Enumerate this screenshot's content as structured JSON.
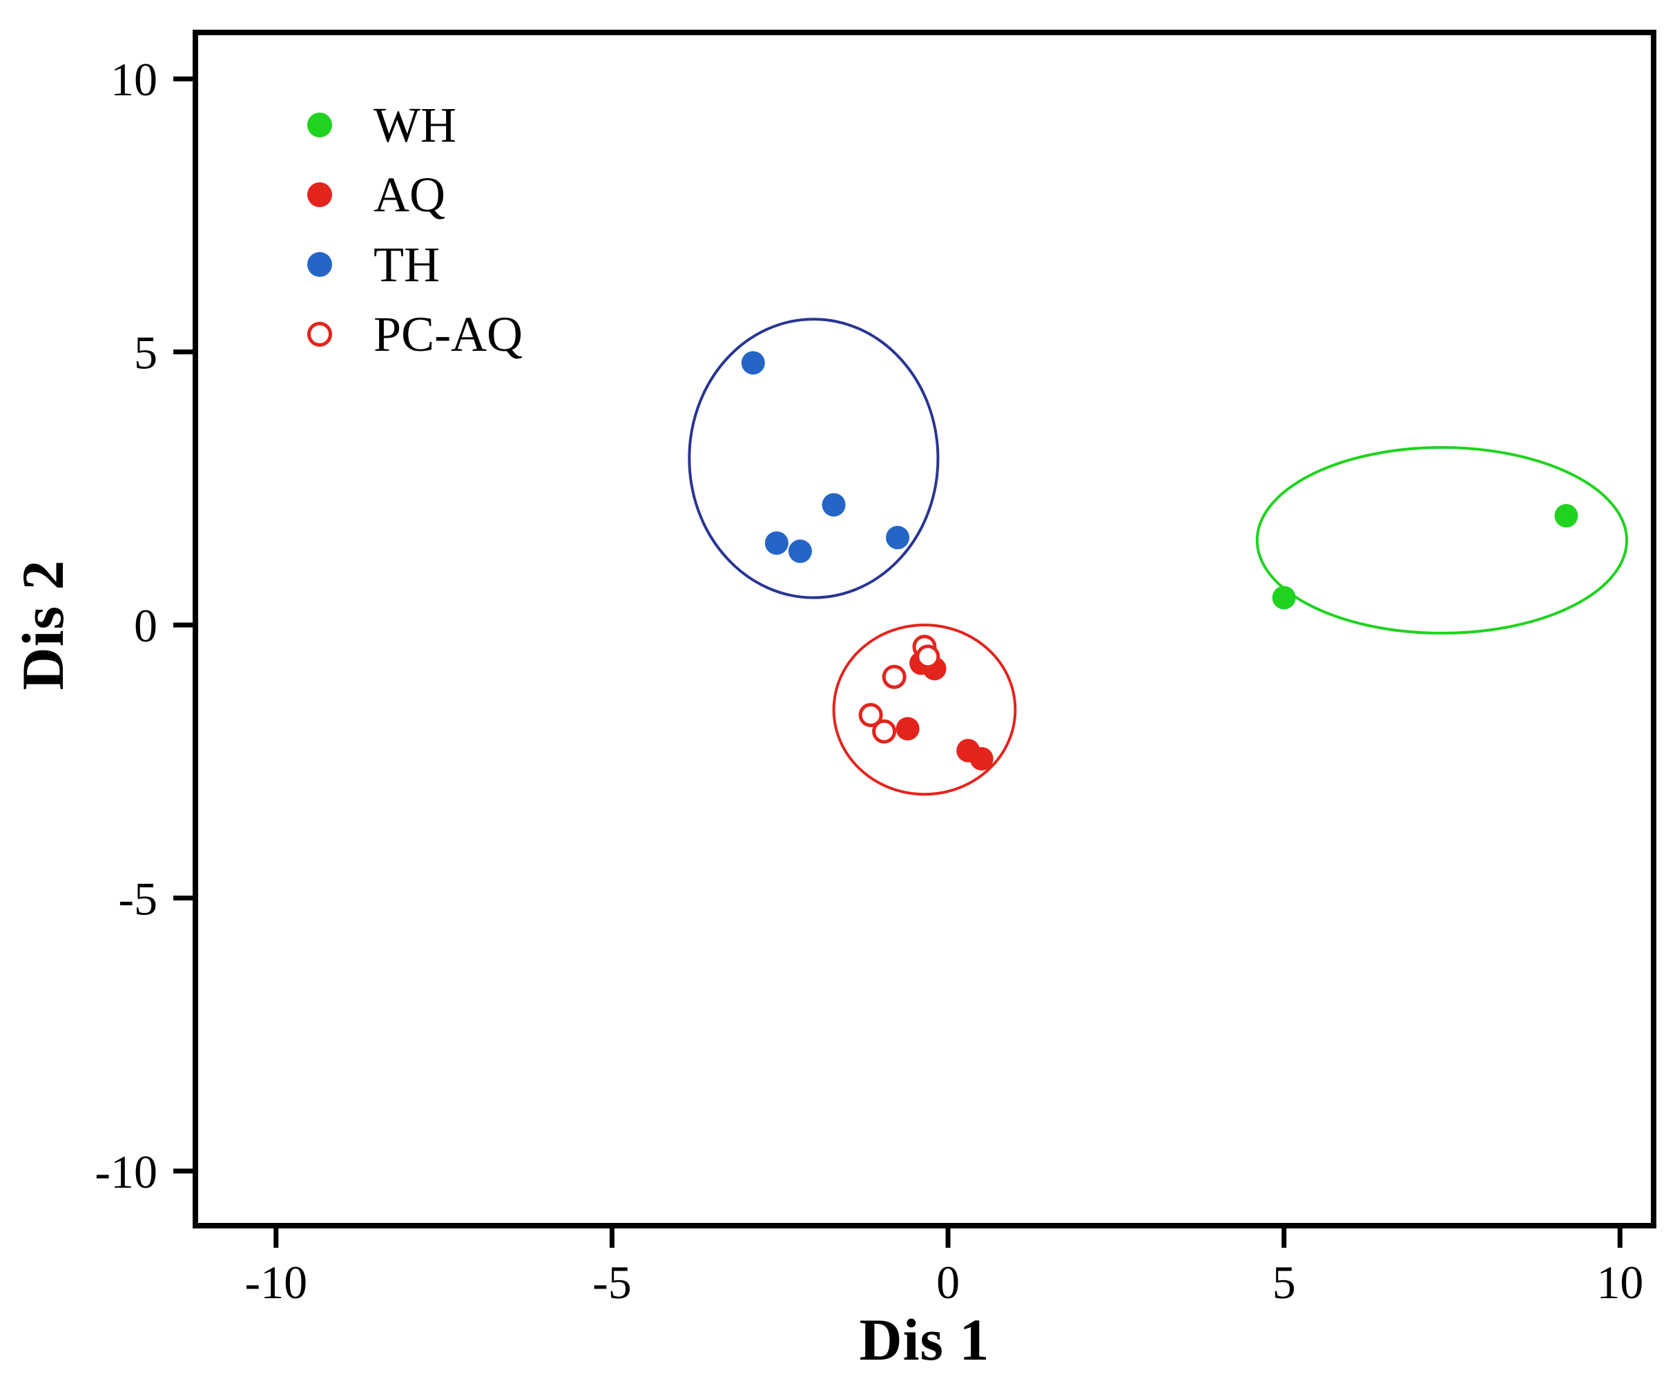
{
  "chart_data": {
    "type": "scatter",
    "title": "",
    "xlabel": "Dis 1",
    "ylabel": "Dis 2",
    "xlim": [
      -11.2,
      10.5
    ],
    "ylim": [
      -11.0,
      10.85
    ],
    "x_ticks": [
      -10,
      -5,
      0,
      5,
      10
    ],
    "y_ticks": [
      -10,
      -5,
      0,
      5,
      10
    ],
    "grid": false,
    "legend_position": "inside top-left",
    "colors": {
      "green": "#1fd31f",
      "red": "#e3241d",
      "blue": "#2465c6",
      "ellipse_blue": "#283593",
      "ellipse_red": "#e3241d",
      "ellipse_green": "#1fd31f",
      "axis": "#000000"
    },
    "legend": [
      {
        "label": "WH",
        "color": "#1fd31f",
        "filled": true
      },
      {
        "label": "AQ",
        "color": "#e3241d",
        "filled": true
      },
      {
        "label": "TH",
        "color": "#2465c6",
        "filled": true
      },
      {
        "label": "PC-AQ",
        "color": "#e3241d",
        "filled": false
      }
    ],
    "series": [
      {
        "name": "WH",
        "color": "#1fd31f",
        "filled": true,
        "points": [
          [
            5.0,
            0.5
          ],
          [
            9.2,
            2.0
          ]
        ]
      },
      {
        "name": "AQ",
        "color": "#e3241d",
        "filled": true,
        "points": [
          [
            -0.4,
            -0.7
          ],
          [
            -0.2,
            -0.8
          ],
          [
            -0.6,
            -1.9
          ],
          [
            0.3,
            -2.3
          ],
          [
            0.5,
            -2.45
          ]
        ]
      },
      {
        "name": "TH",
        "color": "#2465c6",
        "filled": true,
        "points": [
          [
            -2.9,
            4.8
          ],
          [
            -1.7,
            2.2
          ],
          [
            -2.55,
            1.5
          ],
          [
            -2.2,
            1.35
          ],
          [
            -0.75,
            1.6
          ]
        ]
      },
      {
        "name": "PC-AQ",
        "color": "#e3241d",
        "filled": false,
        "points": [
          [
            -0.35,
            -0.4
          ],
          [
            -0.3,
            -0.58
          ],
          [
            -0.8,
            -0.95
          ],
          [
            -1.15,
            -1.65
          ],
          [
            -0.95,
            -1.95
          ]
        ]
      }
    ],
    "ellipses": [
      {
        "name": "TH-cluster",
        "color": "#283593",
        "cx": -2.0,
        "cy": 3.05,
        "rx": 1.85,
        "ry": 2.55
      },
      {
        "name": "AQ-cluster",
        "color": "#e3241d",
        "cx": -0.35,
        "cy": -1.55,
        "rx": 1.35,
        "ry": 1.55
      },
      {
        "name": "WH-cluster",
        "color": "#1fd31f",
        "cx": 7.35,
        "cy": 1.55,
        "rx": 2.75,
        "ry": 1.7
      }
    ]
  }
}
